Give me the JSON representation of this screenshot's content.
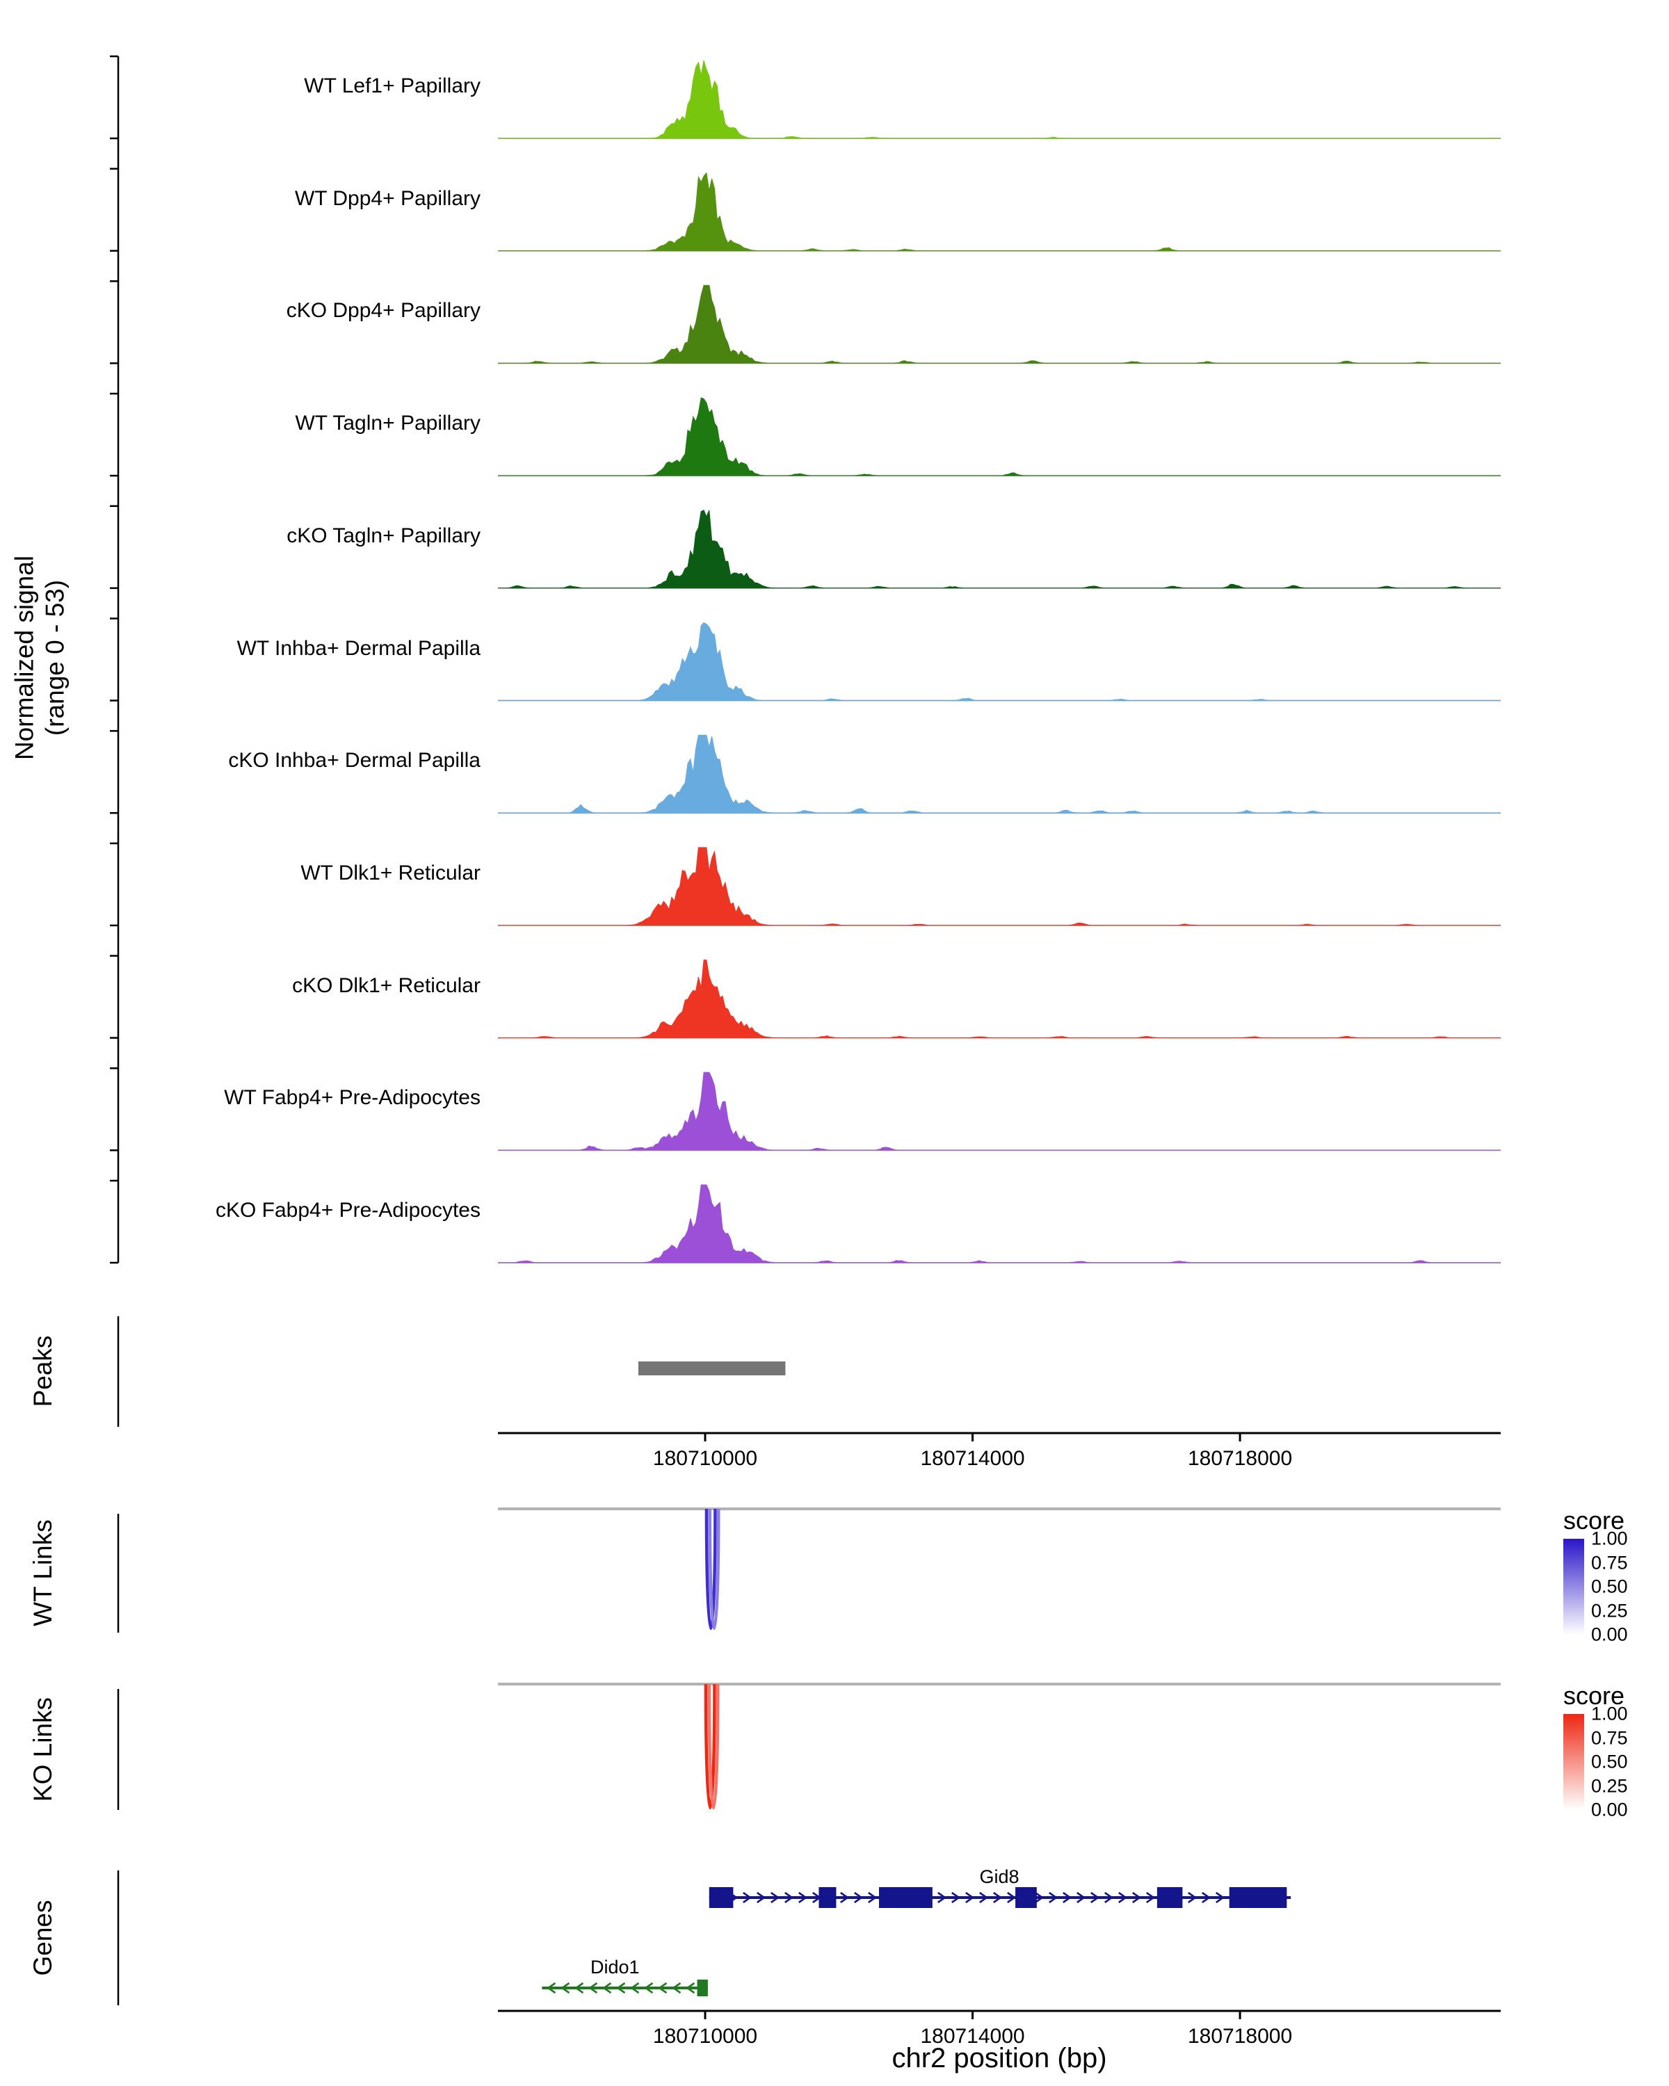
{
  "figure": {
    "y_axis_label": [
      "Normalized signal",
      "(range 0 - 53)"
    ],
    "sections": {
      "peaks": "Peaks",
      "wt_links": "WT Links",
      "ko_links": "KO Links",
      "genes": "Genes"
    },
    "x_axis": {
      "label": "chr2 position (bp)",
      "ticks": [
        {
          "bp": 180710000,
          "label": "180710000"
        },
        {
          "bp": 180714000,
          "label": "180714000"
        },
        {
          "bp": 180718000,
          "label": "180718000"
        }
      ]
    },
    "score_legend": {
      "title": "score",
      "tick_labels": [
        "1.00",
        "0.75",
        "0.50",
        "0.25",
        "0.00"
      ],
      "wt_color": "#2A16C8",
      "ko_color": "#ED2713"
    }
  },
  "chart_data": {
    "type": "area",
    "title": "",
    "region": {
      "chrom": "chr2",
      "start": 180706900,
      "end": 180721900
    },
    "signal_range": [
      0,
      53
    ],
    "tracks": [
      {
        "label": "WT Lef1+ Papillary",
        "color": "#79C60F",
        "peaks": [
          [
            180709550,
            120,
            10
          ],
          [
            180709800,
            90,
            20
          ],
          [
            180709960,
            80,
            50
          ],
          [
            180710120,
            90,
            30
          ],
          [
            180710350,
            120,
            8
          ]
        ],
        "blips": [
          [
            180711300,
            1.5
          ],
          [
            180712500,
            0.8
          ],
          [
            180715200,
            0.7
          ]
        ]
      },
      {
        "label": "WT Dpp4+ Papillary",
        "color": "#55930F",
        "peaks": [
          [
            180709500,
            130,
            7
          ],
          [
            180709800,
            90,
            16
          ],
          [
            180709980,
            80,
            50
          ],
          [
            180710130,
            90,
            26
          ],
          [
            180710400,
            130,
            6
          ]
        ],
        "blips": [
          [
            180711600,
            1.2
          ],
          [
            180712200,
            0.8
          ],
          [
            180713000,
            1.0
          ],
          [
            180716900,
            2.2
          ]
        ]
      },
      {
        "label": "cKO Dpp4+ Papillary",
        "color": "#4A8310",
        "peaks": [
          [
            180709550,
            140,
            8
          ],
          [
            180709850,
            100,
            22
          ],
          [
            180710000,
            85,
            46
          ],
          [
            180710200,
            100,
            24
          ],
          [
            180710500,
            150,
            7
          ]
        ],
        "blips": [
          [
            180707500,
            1.4
          ],
          [
            180708300,
            1.0
          ],
          [
            180711900,
            1.2
          ],
          [
            180713000,
            1.5
          ],
          [
            180714900,
            1.6
          ],
          [
            180716400,
            1.2
          ],
          [
            180717500,
            1.0
          ],
          [
            180719600,
            1.3
          ],
          [
            180720700,
            0.9
          ]
        ]
      },
      {
        "label": "WT Tagln+ Papillary",
        "color": "#1E7A10",
        "peaks": [
          [
            180709500,
            120,
            9
          ],
          [
            180709780,
            90,
            26
          ],
          [
            180709960,
            80,
            50
          ],
          [
            180710150,
            100,
            34
          ],
          [
            180710480,
            140,
            10
          ]
        ],
        "blips": [
          [
            180711400,
            1.5
          ],
          [
            180712400,
            0.9
          ],
          [
            180714600,
            1.8
          ]
        ]
      },
      {
        "label": "cKO Tagln+ Papillary",
        "color": "#0C5C15",
        "peaks": [
          [
            180709550,
            140,
            10
          ],
          [
            180709850,
            100,
            24
          ],
          [
            180710000,
            85,
            48
          ],
          [
            180710200,
            110,
            26
          ],
          [
            180710550,
            160,
            9
          ]
        ],
        "blips": [
          [
            180707200,
            1.6
          ],
          [
            180708000,
            1.4
          ],
          [
            180711600,
            1.5
          ],
          [
            180712600,
            1.2
          ],
          [
            180713700,
            1.0
          ],
          [
            180715800,
            1.3
          ],
          [
            180717000,
            1.1
          ],
          [
            180717900,
            2.4
          ],
          [
            180718800,
            1.5
          ],
          [
            180720200,
            1.2
          ],
          [
            180721200,
            0.9
          ]
        ]
      },
      {
        "label": "WT Inhba+ Dermal Papilla",
        "color": "#68ABDF",
        "peaks": [
          [
            180709450,
            150,
            12
          ],
          [
            180709750,
            110,
            28
          ],
          [
            180709980,
            85,
            50
          ],
          [
            180710160,
            100,
            30
          ],
          [
            180710450,
            140,
            8
          ]
        ],
        "blips": [
          [
            180711900,
            1.2
          ],
          [
            180713900,
            1.6
          ],
          [
            180716200,
            0.9
          ],
          [
            180718300,
            0.8
          ]
        ]
      },
      {
        "label": "cKO Inhba+ Dermal Papilla",
        "color": "#68ABDF",
        "peaks": [
          [
            180709500,
            150,
            12
          ],
          [
            180709800,
            110,
            26
          ],
          [
            180710000,
            90,
            46
          ],
          [
            180710200,
            110,
            26
          ],
          [
            180710550,
            160,
            8
          ]
        ],
        "blips": [
          [
            180708150,
            5.0
          ],
          [
            180711500,
            1.8
          ],
          [
            180712300,
            3.0
          ],
          [
            180713100,
            1.8
          ],
          [
            180715400,
            1.6
          ],
          [
            180715900,
            1.6
          ],
          [
            180716400,
            1.4
          ],
          [
            180718100,
            1.5
          ],
          [
            180718700,
            1.3
          ],
          [
            180719100,
            1.2
          ]
        ]
      },
      {
        "label": "WT Dlk1+ Reticular",
        "color": "#EE3524",
        "peaks": [
          [
            180709350,
            160,
            14
          ],
          [
            180709700,
            120,
            30
          ],
          [
            180709960,
            90,
            52
          ],
          [
            180710180,
            110,
            34
          ],
          [
            180710500,
            160,
            10
          ]
        ],
        "blips": [
          [
            180711900,
            1.1
          ],
          [
            180713200,
            0.9
          ],
          [
            180715600,
            1.6
          ],
          [
            180717200,
            0.8
          ],
          [
            180719000,
            0.7
          ],
          [
            180720500,
            0.8
          ]
        ]
      },
      {
        "label": "cKO Dlk1+ Reticular",
        "color": "#EE3524",
        "peaks": [
          [
            180709450,
            150,
            11
          ],
          [
            180709780,
            110,
            24
          ],
          [
            180710000,
            90,
            46
          ],
          [
            180710220,
            110,
            28
          ],
          [
            180710550,
            160,
            9
          ]
        ],
        "blips": [
          [
            180707600,
            0.9
          ],
          [
            180711800,
            1.2
          ],
          [
            180712900,
            1.0
          ],
          [
            180714100,
            0.9
          ],
          [
            180715300,
            1.0
          ],
          [
            180716600,
            0.9
          ],
          [
            180718200,
            0.8
          ],
          [
            180719600,
            0.9
          ],
          [
            180721000,
            0.8
          ]
        ]
      },
      {
        "label": "WT Fabp4+ Pre-Adipocytes",
        "color": "#9C50D8",
        "peaks": [
          [
            180709450,
            150,
            9
          ],
          [
            180709780,
            110,
            22
          ],
          [
            180710020,
            90,
            48
          ],
          [
            180710220,
            110,
            30
          ],
          [
            180710550,
            160,
            9
          ]
        ],
        "blips": [
          [
            180708300,
            2.8
          ],
          [
            180709000,
            2.0
          ],
          [
            180711700,
            1.4
          ],
          [
            180712700,
            2.2
          ]
        ]
      },
      {
        "label": "cKO Fabp4+ Pre-Adipocytes",
        "color": "#9C50D8",
        "peaks": [
          [
            180709500,
            150,
            10
          ],
          [
            180709820,
            110,
            24
          ],
          [
            180710020,
            90,
            47
          ],
          [
            180710230,
            110,
            28
          ],
          [
            180710580,
            160,
            8
          ]
        ],
        "blips": [
          [
            180707300,
            1.4
          ],
          [
            180711800,
            1.3
          ],
          [
            180712900,
            1.6
          ],
          [
            180714100,
            1.2
          ],
          [
            180715600,
            1.0
          ],
          [
            180717100,
            1.1
          ],
          [
            180720700,
            1.3
          ]
        ]
      }
    ],
    "peaks_track": [
      {
        "start": 180709000,
        "end": 180711200
      }
    ],
    "wt_links": [
      {
        "start": 180710020,
        "end": 180710150,
        "score": 0.9
      },
      {
        "start": 180710070,
        "end": 180710200,
        "score": 0.55
      }
    ],
    "ko_links": [
      {
        "start": 180710010,
        "end": 180710140,
        "score": 1.0
      },
      {
        "start": 180710060,
        "end": 180710190,
        "score": 0.65
      }
    ],
    "genes": [
      {
        "name": "Gid8",
        "strand": "+",
        "start": 180710060,
        "end": 180718760,
        "color": "#14148C",
        "label_bp": 180714400,
        "exons": [
          [
            180710060,
            180710420
          ],
          [
            180711700,
            180711960
          ],
          [
            180712600,
            180713400
          ],
          [
            180714640,
            180714960
          ],
          [
            180716760,
            180717140
          ],
          [
            180717840,
            180718700
          ]
        ]
      },
      {
        "name": "Dido1",
        "strand": "-",
        "start": 180707560,
        "end": 180710040,
        "color": "#1F7A1F",
        "label_bp": 180708650,
        "exons": [
          [
            180709880,
            180710040
          ]
        ]
      }
    ]
  }
}
